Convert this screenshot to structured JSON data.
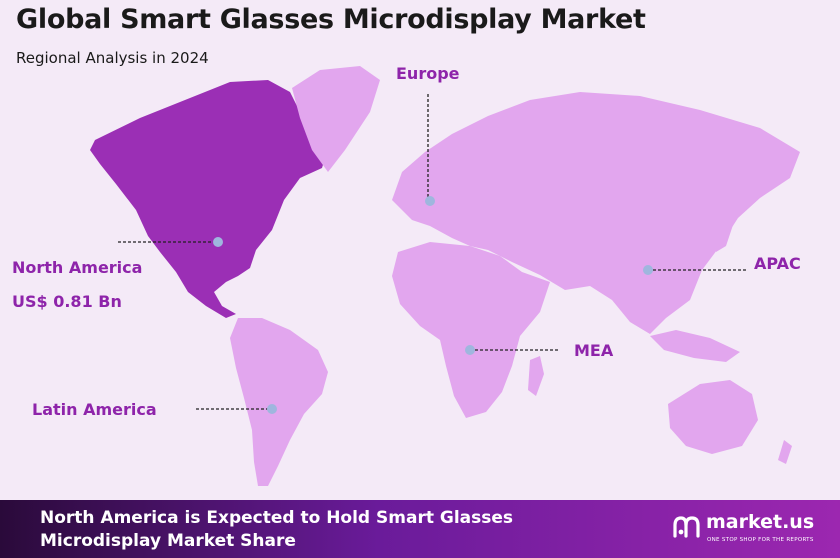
{
  "header": {
    "title": "Global Smart Glasses Microdisplay Market",
    "subtitle": "Regional Analysis in 2024"
  },
  "regions": {
    "europe": "Europe",
    "north_america": "North America",
    "north_america_value": "US$ 0.81 Bn",
    "apac": "APAC",
    "mea": "MEA",
    "latin_america": "Latin America"
  },
  "footer": {
    "text": "North America is Expected to Hold Smart Glasses Microdisplay Market Share",
    "brand": "market.us",
    "tagline": "ONE STOP SHOP FOR THE REPORTS"
  },
  "colors": {
    "highlight_region": "#9b2fb5",
    "other_regions": "#e2a6ee",
    "label": "#8e24aa",
    "marker": "#9fb6de"
  },
  "icons": [
    "marketus-logo-icon"
  ]
}
